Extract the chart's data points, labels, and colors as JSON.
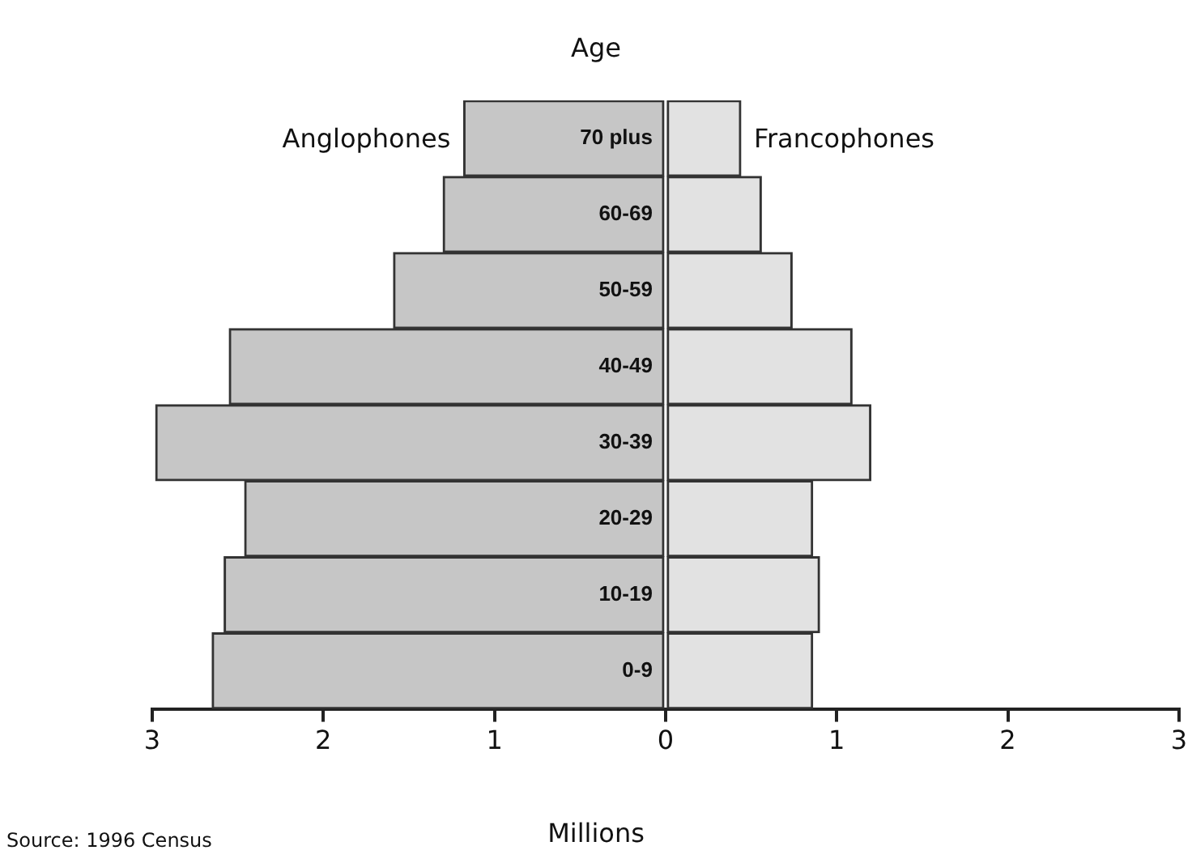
{
  "chart_data": {
    "type": "bar",
    "orientation": "horizontal",
    "stacked": true,
    "ylabel": "Age",
    "xlabel": "Millions",
    "categories": [
      "70 plus",
      "60-69",
      "50-59",
      "40-49",
      "30-39",
      "20-29",
      "10-19",
      "0-9"
    ],
    "series": [
      {
        "name": "Anglophones",
        "color": "#c6c6c6",
        "values": [
          -1.18,
          -1.3,
          -1.59,
          -2.55,
          -2.98,
          -2.46,
          -2.58,
          -2.65
        ]
      },
      {
        "name": "Francophones",
        "color": "#e2e2e2",
        "values": [
          0.44,
          0.56,
          0.74,
          1.09,
          1.2,
          0.86,
          0.9,
          0.86
        ]
      }
    ],
    "xlim": [
      -3,
      3
    ],
    "xticks": [
      {
        "value": -3,
        "label": "3"
      },
      {
        "value": -2,
        "label": "2"
      },
      {
        "value": -1,
        "label": "1"
      },
      0,
      1,
      2,
      3
    ],
    "grid": false,
    "legend": false,
    "annotations": [
      "Source: 1996 Census"
    ]
  }
}
